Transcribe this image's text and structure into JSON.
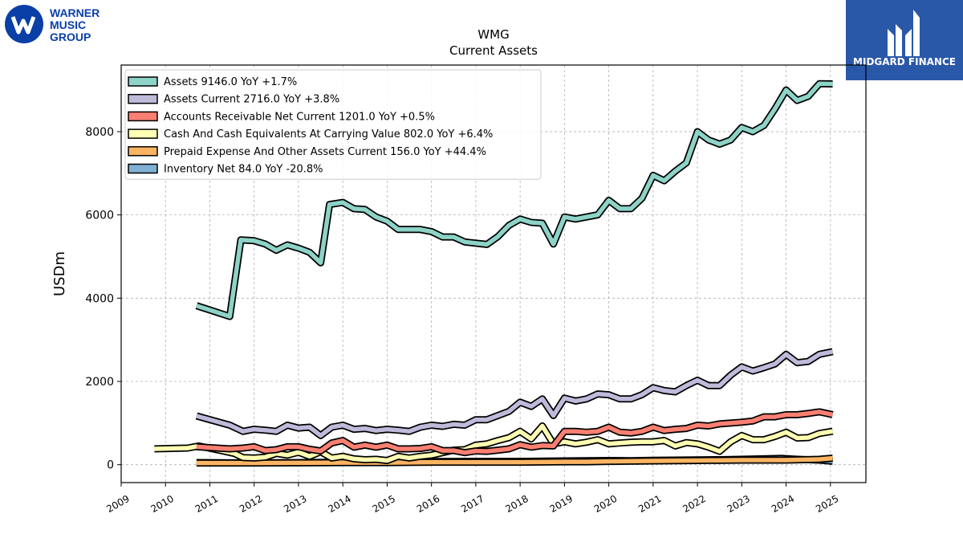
{
  "logos": {
    "left": {
      "line1": "WARNER",
      "line2": "MUSIC",
      "line3": "GROUP",
      "color": "#0a3fa8"
    },
    "right": {
      "name": "MIDGARD FINANCE",
      "bg": "#2a58a8"
    }
  },
  "chart_data": {
    "type": "line",
    "title": "WMG",
    "subtitle": "Current  Assets",
    "ylabel": "USDm",
    "xlabel": "",
    "xlim": [
      2009.0,
      2025.8
    ],
    "ylim": [
      -430,
      9600
    ],
    "yticks": [
      0,
      2000,
      4000,
      6000,
      8000
    ],
    "xticks": [
      "2009",
      "2010",
      "2011",
      "2012",
      "2013",
      "2014",
      "2015",
      "2016",
      "2017",
      "2018",
      "2019",
      "2020",
      "2021",
      "2022",
      "2023",
      "2024",
      "2025"
    ],
    "grid": true,
    "legend_position": "top-left",
    "series": [
      {
        "name": "Assets  9146.0 YoY +1.7%",
        "color": "#8dd3c7",
        "points": [
          [
            2010.7,
            3820
          ],
          [
            2011.45,
            3560
          ],
          [
            2011.7,
            5400
          ],
          [
            2012.0,
            5380
          ],
          [
            2012.25,
            5300
          ],
          [
            2012.5,
            5150
          ],
          [
            2012.75,
            5280
          ],
          [
            2013.0,
            5200
          ],
          [
            2013.25,
            5100
          ],
          [
            2013.5,
            4850
          ],
          [
            2013.7,
            6250
          ],
          [
            2014.0,
            6300
          ],
          [
            2014.25,
            6150
          ],
          [
            2014.5,
            6130
          ],
          [
            2014.75,
            5950
          ],
          [
            2015.0,
            5850
          ],
          [
            2015.25,
            5650
          ],
          [
            2015.5,
            5650
          ],
          [
            2015.75,
            5650
          ],
          [
            2016.0,
            5600
          ],
          [
            2016.25,
            5470
          ],
          [
            2016.5,
            5470
          ],
          [
            2016.75,
            5350
          ],
          [
            2017.0,
            5320
          ],
          [
            2017.25,
            5290
          ],
          [
            2017.5,
            5480
          ],
          [
            2017.75,
            5750
          ],
          [
            2018.0,
            5900
          ],
          [
            2018.25,
            5820
          ],
          [
            2018.5,
            5800
          ],
          [
            2018.75,
            5300
          ],
          [
            2019.0,
            5950
          ],
          [
            2019.25,
            5900
          ],
          [
            2019.5,
            5950
          ],
          [
            2019.75,
            6000
          ],
          [
            2020.0,
            6350
          ],
          [
            2020.25,
            6150
          ],
          [
            2020.5,
            6150
          ],
          [
            2020.75,
            6400
          ],
          [
            2021.0,
            6950
          ],
          [
            2021.25,
            6820
          ],
          [
            2021.5,
            7050
          ],
          [
            2021.75,
            7250
          ],
          [
            2022.0,
            8000
          ],
          [
            2022.25,
            7800
          ],
          [
            2022.5,
            7700
          ],
          [
            2022.75,
            7800
          ],
          [
            2023.0,
            8100
          ],
          [
            2023.25,
            8000
          ],
          [
            2023.5,
            8150
          ],
          [
            2023.75,
            8550
          ],
          [
            2024.0,
            9000
          ],
          [
            2024.25,
            8750
          ],
          [
            2024.5,
            8850
          ],
          [
            2024.75,
            9150
          ],
          [
            2025.05,
            9146
          ]
        ]
      },
      {
        "name": "Assets Current  2716.0 YoY +3.8%",
        "color": "#bebada",
        "points": [
          [
            2010.7,
            1170
          ],
          [
            2011.45,
            950
          ],
          [
            2011.75,
            800
          ],
          [
            2012.0,
            850
          ],
          [
            2012.25,
            830
          ],
          [
            2012.5,
            800
          ],
          [
            2012.75,
            950
          ],
          [
            2013.0,
            880
          ],
          [
            2013.25,
            900
          ],
          [
            2013.5,
            700
          ],
          [
            2013.75,
            900
          ],
          [
            2014.0,
            950
          ],
          [
            2014.25,
            850
          ],
          [
            2014.5,
            870
          ],
          [
            2014.75,
            820
          ],
          [
            2015.0,
            850
          ],
          [
            2015.25,
            830
          ],
          [
            2015.5,
            800
          ],
          [
            2015.75,
            900
          ],
          [
            2016.0,
            950
          ],
          [
            2016.25,
            920
          ],
          [
            2016.5,
            970
          ],
          [
            2016.75,
            950
          ],
          [
            2017.0,
            1080
          ],
          [
            2017.25,
            1080
          ],
          [
            2017.5,
            1180
          ],
          [
            2017.75,
            1280
          ],
          [
            2018.0,
            1500
          ],
          [
            2018.25,
            1400
          ],
          [
            2018.5,
            1580
          ],
          [
            2018.75,
            1180
          ],
          [
            2019.0,
            1600
          ],
          [
            2019.25,
            1530
          ],
          [
            2019.5,
            1580
          ],
          [
            2019.75,
            1700
          ],
          [
            2020.0,
            1680
          ],
          [
            2020.25,
            1580
          ],
          [
            2020.5,
            1580
          ],
          [
            2020.75,
            1680
          ],
          [
            2021.0,
            1850
          ],
          [
            2021.25,
            1780
          ],
          [
            2021.5,
            1750
          ],
          [
            2021.75,
            1900
          ],
          [
            2022.0,
            2030
          ],
          [
            2022.25,
            1900
          ],
          [
            2022.5,
            1900
          ],
          [
            2022.75,
            2150
          ],
          [
            2023.0,
            2350
          ],
          [
            2023.25,
            2250
          ],
          [
            2023.5,
            2330
          ],
          [
            2023.75,
            2420
          ],
          [
            2024.0,
            2650
          ],
          [
            2024.25,
            2450
          ],
          [
            2024.5,
            2480
          ],
          [
            2024.75,
            2650
          ],
          [
            2025.05,
            2716
          ]
        ]
      },
      {
        "name": "Accounts Receivable Net Current  1201.0 YoY +0.5%",
        "color": "#fb8072",
        "points": [
          [
            2010.7,
            430
          ],
          [
            2011.45,
            380
          ],
          [
            2011.75,
            400
          ],
          [
            2012.0,
            430
          ],
          [
            2012.25,
            340
          ],
          [
            2012.5,
            360
          ],
          [
            2012.75,
            430
          ],
          [
            2013.0,
            430
          ],
          [
            2013.25,
            370
          ],
          [
            2013.5,
            330
          ],
          [
            2013.75,
            520
          ],
          [
            2014.0,
            580
          ],
          [
            2014.25,
            420
          ],
          [
            2014.5,
            470
          ],
          [
            2014.75,
            420
          ],
          [
            2015.0,
            470
          ],
          [
            2015.25,
            380
          ],
          [
            2015.5,
            380
          ],
          [
            2015.75,
            390
          ],
          [
            2016.0,
            430
          ],
          [
            2016.25,
            340
          ],
          [
            2016.5,
            340
          ],
          [
            2016.75,
            290
          ],
          [
            2017.0,
            330
          ],
          [
            2017.25,
            320
          ],
          [
            2017.5,
            350
          ],
          [
            2017.75,
            380
          ],
          [
            2018.0,
            480
          ],
          [
            2018.25,
            420
          ],
          [
            2018.5,
            460
          ],
          [
            2018.75,
            450
          ],
          [
            2019.0,
            800
          ],
          [
            2019.25,
            800
          ],
          [
            2019.5,
            780
          ],
          [
            2019.75,
            800
          ],
          [
            2020.0,
            900
          ],
          [
            2020.25,
            780
          ],
          [
            2020.5,
            760
          ],
          [
            2020.75,
            800
          ],
          [
            2021.0,
            900
          ],
          [
            2021.25,
            820
          ],
          [
            2021.5,
            850
          ],
          [
            2021.75,
            870
          ],
          [
            2022.0,
            950
          ],
          [
            2022.25,
            930
          ],
          [
            2022.5,
            980
          ],
          [
            2022.75,
            1000
          ],
          [
            2023.0,
            1020
          ],
          [
            2023.25,
            1050
          ],
          [
            2023.5,
            1150
          ],
          [
            2023.75,
            1150
          ],
          [
            2024.0,
            1200
          ],
          [
            2024.25,
            1200
          ],
          [
            2024.5,
            1230
          ],
          [
            2024.75,
            1270
          ],
          [
            2025.05,
            1201
          ]
        ]
      },
      {
        "name": "Cash And Cash Equivalents At Carrying Value  802.0 YoY +6.4%",
        "color": "#ffffb3",
        "points": [
          [
            2009.75,
            380
          ],
          [
            2010.5,
            400
          ],
          [
            2010.75,
            450
          ],
          [
            2011.25,
            340
          ],
          [
            2011.55,
            270
          ],
          [
            2011.75,
            170
          ],
          [
            2012.0,
            160
          ],
          [
            2012.25,
            180
          ],
          [
            2012.5,
            270
          ],
          [
            2012.75,
            230
          ],
          [
            2013.0,
            300
          ],
          [
            2013.25,
            200
          ],
          [
            2013.5,
            310
          ],
          [
            2013.75,
            160
          ],
          [
            2014.0,
            200
          ],
          [
            2014.25,
            140
          ],
          [
            2014.5,
            120
          ],
          [
            2014.75,
            130
          ],
          [
            2015.0,
            100
          ],
          [
            2015.25,
            200
          ],
          [
            2015.5,
            160
          ],
          [
            2015.75,
            200
          ],
          [
            2016.0,
            230
          ],
          [
            2016.25,
            290
          ],
          [
            2016.5,
            350
          ],
          [
            2016.75,
            360
          ],
          [
            2017.0,
            470
          ],
          [
            2017.25,
            500
          ],
          [
            2017.5,
            580
          ],
          [
            2017.75,
            650
          ],
          [
            2018.0,
            800
          ],
          [
            2018.25,
            620
          ],
          [
            2018.5,
            930
          ],
          [
            2018.75,
            500
          ],
          [
            2019.0,
            550
          ],
          [
            2019.25,
            500
          ],
          [
            2019.5,
            540
          ],
          [
            2019.75,
            600
          ],
          [
            2020.0,
            500
          ],
          [
            2020.25,
            520
          ],
          [
            2020.5,
            540
          ],
          [
            2020.75,
            550
          ],
          [
            2021.0,
            550
          ],
          [
            2021.25,
            580
          ],
          [
            2021.5,
            450
          ],
          [
            2021.75,
            530
          ],
          [
            2022.0,
            500
          ],
          [
            2022.25,
            420
          ],
          [
            2022.5,
            320
          ],
          [
            2022.75,
            550
          ],
          [
            2023.0,
            700
          ],
          [
            2023.25,
            600
          ],
          [
            2023.5,
            600
          ],
          [
            2023.75,
            680
          ],
          [
            2024.0,
            780
          ],
          [
            2024.25,
            640
          ],
          [
            2024.5,
            650
          ],
          [
            2024.75,
            750
          ],
          [
            2025.05,
            802
          ]
        ]
      },
      {
        "name": "Prepaid Expense And Other Assets Current  156.0 YoY +44.4%",
        "color": "#fdb462",
        "points": [
          [
            2010.7,
            40
          ],
          [
            2011.5,
            40
          ],
          [
            2012.0,
            40
          ],
          [
            2013.0,
            45
          ],
          [
            2014.0,
            50
          ],
          [
            2015.0,
            50
          ],
          [
            2016.0,
            60
          ],
          [
            2017.0,
            60
          ],
          [
            2018.0,
            60
          ],
          [
            2019.0,
            70
          ],
          [
            2019.5,
            70
          ],
          [
            2020.0,
            80
          ],
          [
            2021.0,
            90
          ],
          [
            2022.0,
            100
          ],
          [
            2023.0,
            110
          ],
          [
            2024.0,
            110
          ],
          [
            2024.75,
            130
          ],
          [
            2025.05,
            156
          ]
        ]
      },
      {
        "name": "Inventory Net  84.0 YoY -20.8%",
        "color": "#80b1d3",
        "points": [
          [
            2010.7,
            50
          ],
          [
            2011.5,
            45
          ],
          [
            2012.0,
            45
          ],
          [
            2013.0,
            50
          ],
          [
            2014.0,
            60
          ],
          [
            2015.0,
            70
          ],
          [
            2016.0,
            75
          ],
          [
            2017.0,
            80
          ],
          [
            2018.0,
            80
          ],
          [
            2019.0,
            90
          ],
          [
            2020.0,
            100
          ],
          [
            2020.5,
            95
          ],
          [
            2021.0,
            105
          ],
          [
            2022.0,
            115
          ],
          [
            2022.5,
            120
          ],
          [
            2023.0,
            130
          ],
          [
            2023.5,
            140
          ],
          [
            2023.9,
            150
          ],
          [
            2024.25,
            130
          ],
          [
            2024.75,
            110
          ],
          [
            2025.05,
            84
          ]
        ]
      }
    ]
  }
}
